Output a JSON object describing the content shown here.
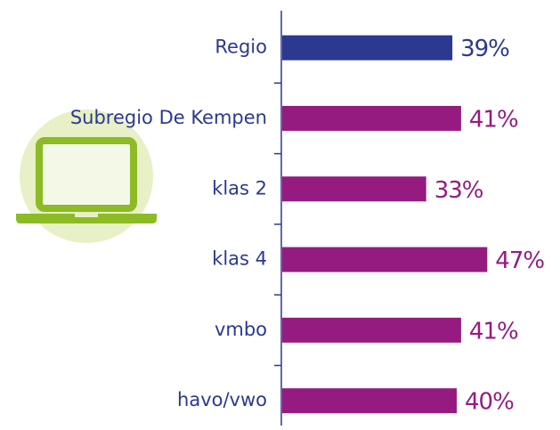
{
  "chart_data": {
    "type": "barh",
    "categories": [
      "Regio",
      "Subregio De Kempen",
      "klas 2",
      "klas 4",
      "vmbo",
      "havo/vwo"
    ],
    "values": [
      39,
      41,
      33,
      47,
      41,
      40
    ],
    "value_labels": [
      "39%",
      "41%",
      "33%",
      "47%",
      "41%",
      "40%"
    ],
    "colors": [
      "#2b3990",
      "#951b81",
      "#951b81",
      "#951b81",
      "#951b81",
      "#951b81"
    ],
    "label_color": "#2b3990"
  }
}
